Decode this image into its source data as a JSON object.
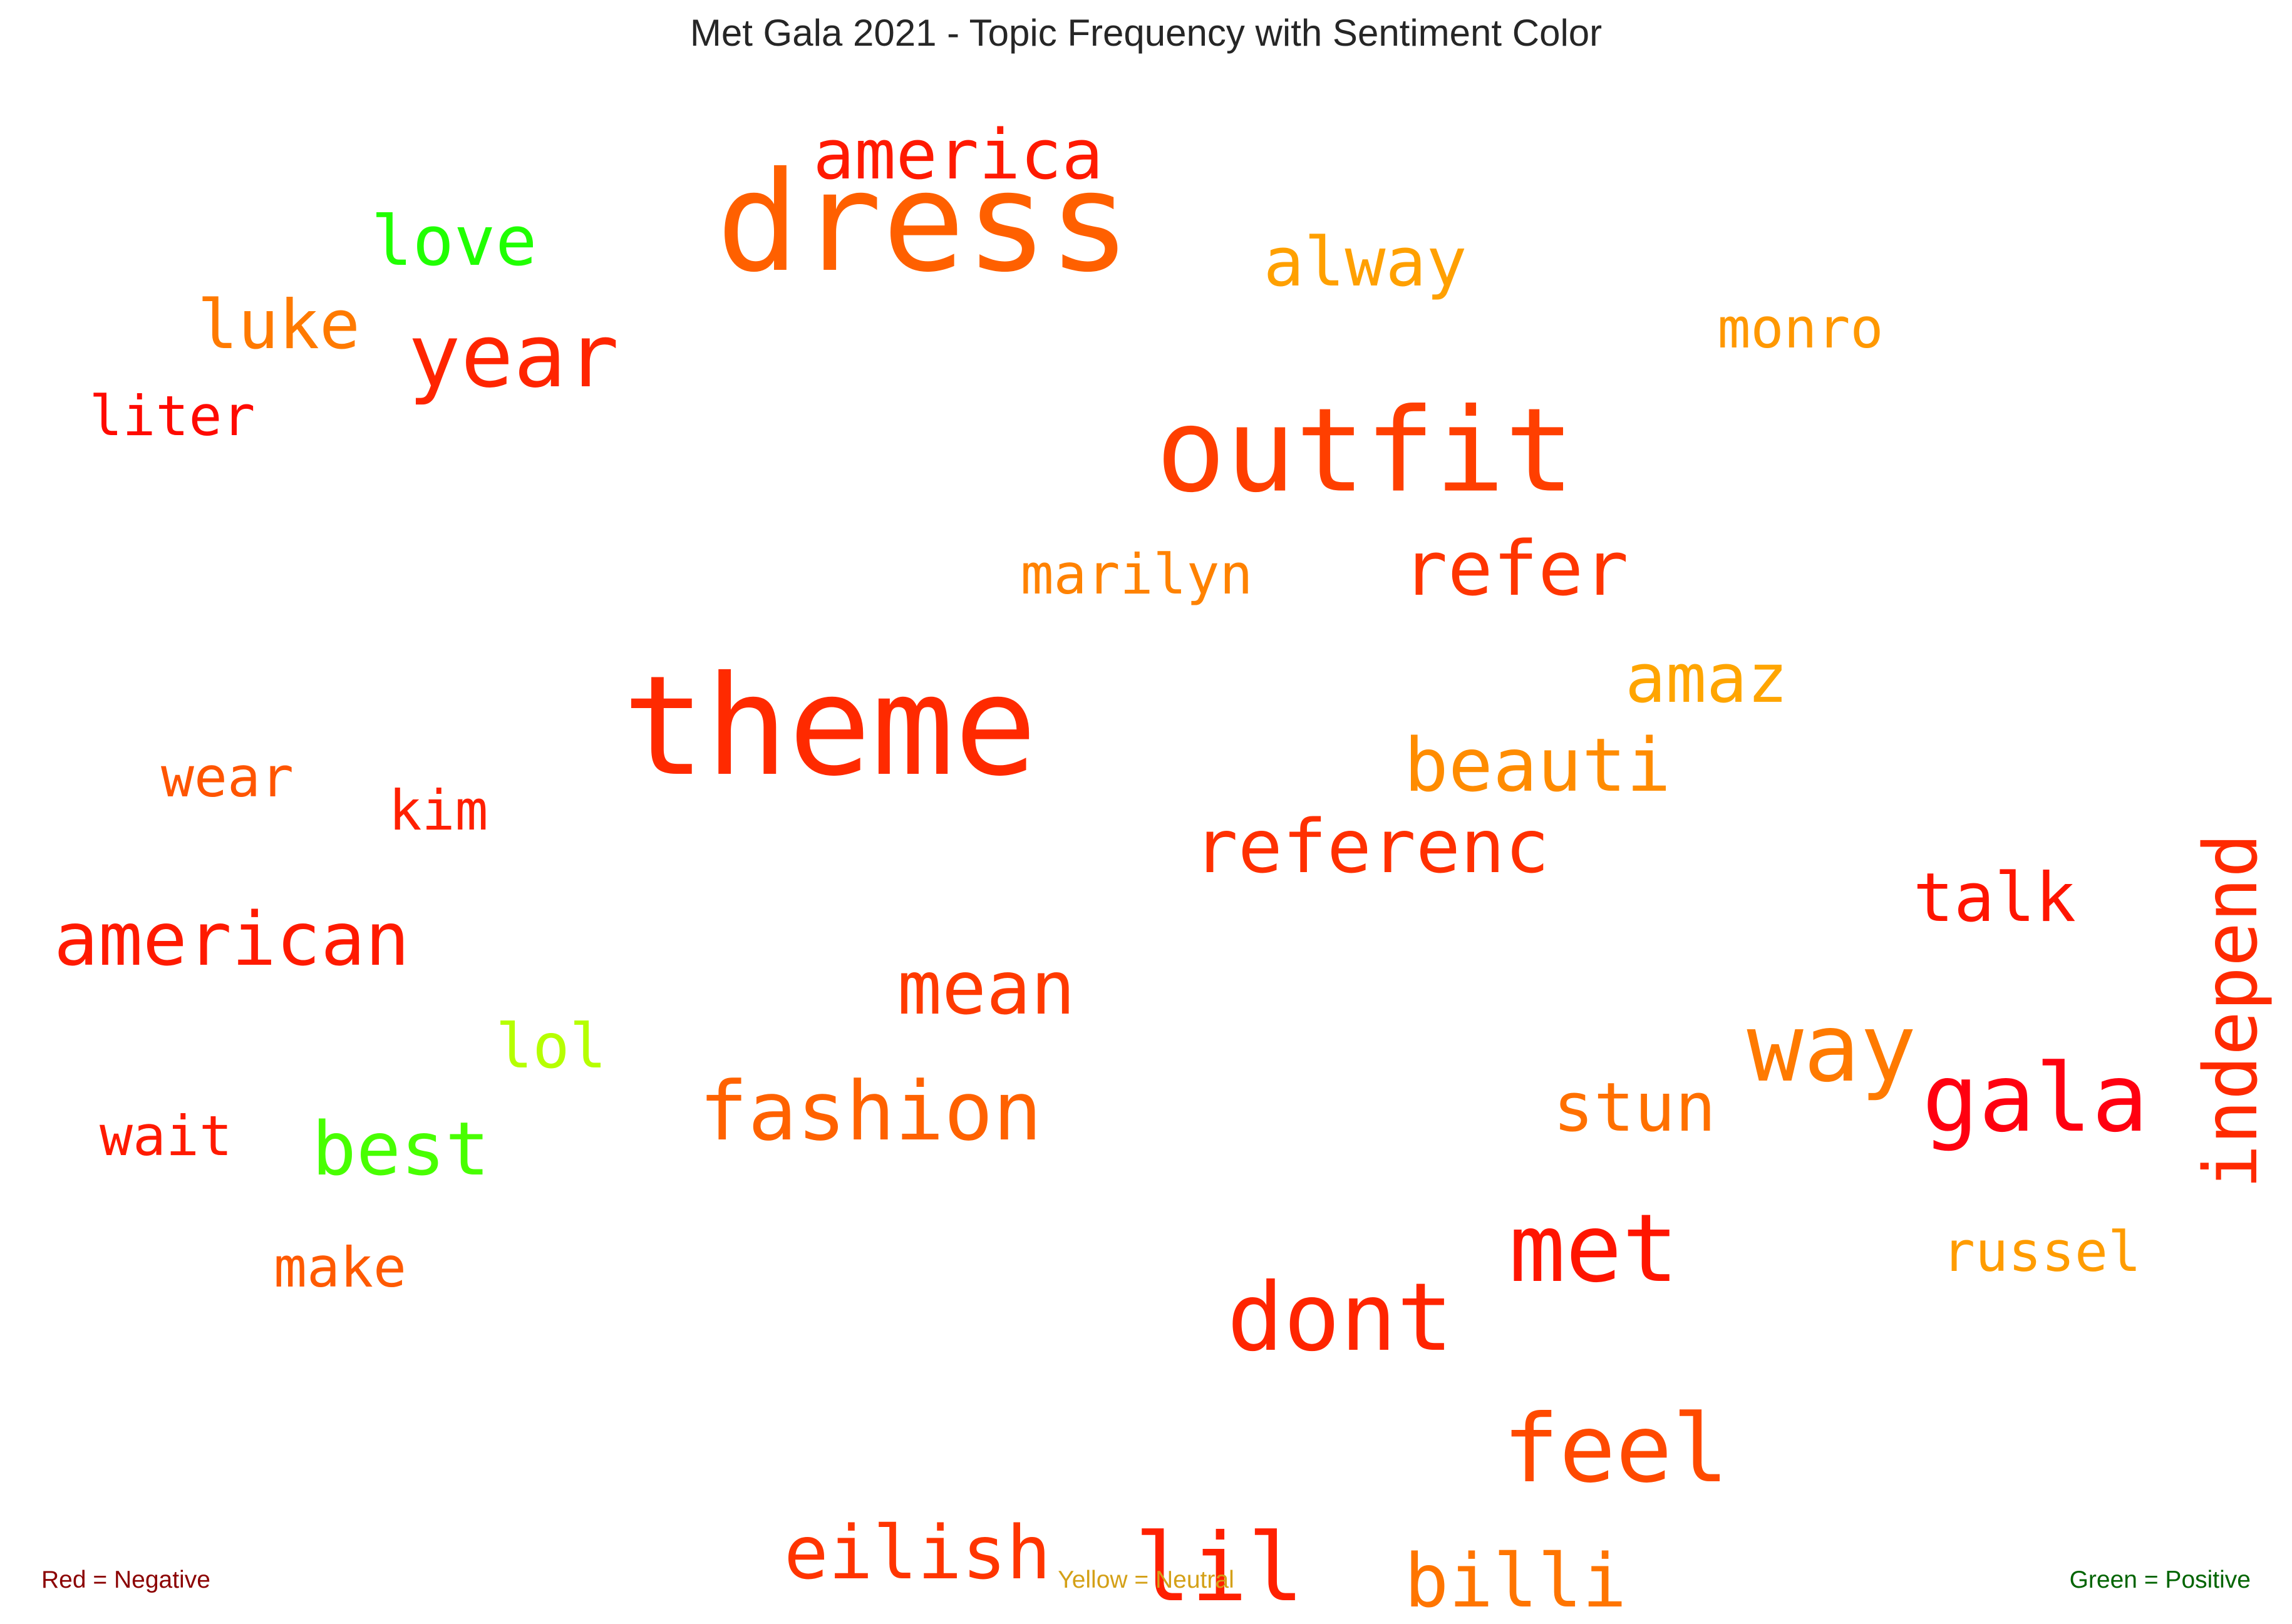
{
  "chart_data": {
    "type": "wordcloud",
    "title": "Met Gala 2021 - Topic Frequency with Sentiment Color",
    "words": [
      {
        "text": "dress",
        "color": "#ff6000",
        "vertical": false
      },
      {
        "text": "america",
        "color": "#ff1a00",
        "vertical": false
      },
      {
        "text": "love",
        "color": "#20ff00",
        "vertical": false
      },
      {
        "text": "alway",
        "color": "#ffa000",
        "vertical": false
      },
      {
        "text": "luke",
        "color": "#ff7a00",
        "vertical": false
      },
      {
        "text": "year",
        "color": "#ff2500",
        "vertical": false
      },
      {
        "text": "monro",
        "color": "#ff9800",
        "vertical": false
      },
      {
        "text": "liter",
        "color": "#ff0a00",
        "vertical": false
      },
      {
        "text": "outfit",
        "color": "#ff3f00",
        "vertical": false
      },
      {
        "text": "marilyn",
        "color": "#ff8200",
        "vertical": false
      },
      {
        "text": "refer",
        "color": "#ff3500",
        "vertical": false
      },
      {
        "text": "theme",
        "color": "#ff2a00",
        "vertical": false
      },
      {
        "text": "amaz",
        "color": "#ffa500",
        "vertical": false
      },
      {
        "text": "beauti",
        "color": "#ff8c00",
        "vertical": false
      },
      {
        "text": "wear",
        "color": "#ff5500",
        "vertical": false
      },
      {
        "text": "kim",
        "color": "#ff2000",
        "vertical": false
      },
      {
        "text": "referenc",
        "color": "#ff3000",
        "vertical": false
      },
      {
        "text": "independ",
        "color": "#ff2a00",
        "vertical": true
      },
      {
        "text": "talk",
        "color": "#ff1500",
        "vertical": false
      },
      {
        "text": "american",
        "color": "#ff1a00",
        "vertical": false
      },
      {
        "text": "mean",
        "color": "#ff3a00",
        "vertical": false
      },
      {
        "text": "way",
        "color": "#ff7a00",
        "vertical": false
      },
      {
        "text": "lol",
        "color": "#b6ff00",
        "vertical": false
      },
      {
        "text": "gala",
        "color": "#ff0010",
        "vertical": false
      },
      {
        "text": "fashion",
        "color": "#ff6200",
        "vertical": false
      },
      {
        "text": "stun",
        "color": "#ff7000",
        "vertical": false
      },
      {
        "text": "wait",
        "color": "#ff1a00",
        "vertical": false
      },
      {
        "text": "best",
        "color": "#48ff00",
        "vertical": false
      },
      {
        "text": "met",
        "color": "#ff1500",
        "vertical": false
      },
      {
        "text": "russel",
        "color": "#ff9c00",
        "vertical": false
      },
      {
        "text": "make",
        "color": "#ff5a00",
        "vertical": false
      },
      {
        "text": "dont",
        "color": "#ff2500",
        "vertical": false
      },
      {
        "text": "feel",
        "color": "#ff4a00",
        "vertical": false
      },
      {
        "text": "eilish",
        "color": "#ff3500",
        "vertical": false
      },
      {
        "text": "lil",
        "color": "#ff2000",
        "vertical": false
      },
      {
        "text": "billi",
        "color": "#ff7500",
        "vertical": false
      }
    ],
    "legend": {
      "negative": {
        "label": "Red = Negative",
        "color": "#8b0000"
      },
      "neutral": {
        "label": "Yellow = Neutral",
        "color": "#d4a017"
      },
      "positive": {
        "label": "Green = Positive",
        "color": "#006400"
      }
    }
  }
}
